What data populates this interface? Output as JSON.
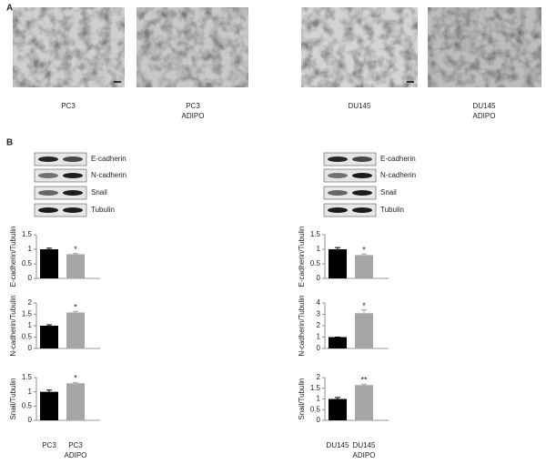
{
  "panel_labels": [
    "A",
    "B"
  ],
  "images": [
    {
      "caption": "PC3"
    },
    {
      "caption": "PC3\nADIPO"
    },
    {
      "caption": "DU145"
    },
    {
      "caption": "DU145\nADIPO"
    }
  ],
  "blots": [
    {
      "proteins": [
        "E-cadherin",
        "N-cadherin",
        "Snail",
        "Tubulin"
      ]
    },
    {
      "proteins": [
        "E-cadherin",
        "N-cadherin",
        "Snail",
        "Tubulin"
      ]
    }
  ],
  "chart_data": [
    {
      "type": "bar",
      "y_label": "E-cadherin/Tubulin",
      "values": [
        1.0,
        0.83
      ],
      "errors": [
        0.04,
        0.02
      ],
      "colors": [
        "#000000",
        "#a6a6a6"
      ],
      "value_annotations": [
        null,
        "*"
      ],
      "ylim": [
        0,
        1.5
      ],
      "yticks": [
        0,
        0.5,
        1,
        1.5
      ]
    },
    {
      "type": "bar",
      "y_label": "N-cadherin/Tubulin",
      "values": [
        1.0,
        1.58
      ],
      "errors": [
        0.04,
        0.05
      ],
      "colors": [
        "#000000",
        "#a6a6a6"
      ],
      "value_annotations": [
        null,
        "*"
      ],
      "ylim": [
        0,
        2
      ],
      "yticks": [
        0,
        0.5,
        1,
        1.5,
        2
      ]
    },
    {
      "type": "bar",
      "y_label": "Snail/Tubulin",
      "categories": [
        "PC3",
        "PC3\nADIPO"
      ],
      "values": [
        1.0,
        1.3
      ],
      "errors": [
        0.06,
        0.03
      ],
      "colors": [
        "#000000",
        "#a6a6a6"
      ],
      "value_annotations": [
        null,
        "*"
      ],
      "ylim": [
        0,
        1.5
      ],
      "yticks": [
        0,
        0.5,
        1,
        1.5
      ]
    },
    {
      "type": "bar",
      "y_label": "E-cadherin/Tubulin",
      "values": [
        1.0,
        0.8
      ],
      "errors": [
        0.06,
        0.04
      ],
      "colors": [
        "#000000",
        "#a6a6a6"
      ],
      "value_annotations": [
        null,
        "*"
      ],
      "ylim": [
        0,
        1.5
      ],
      "yticks": [
        0,
        0.5,
        1,
        1.5
      ]
    },
    {
      "type": "bar",
      "y_label": "N-cadherin/Tubulin",
      "values": [
        1.0,
        3.1
      ],
      "errors": [
        0.0,
        0.3
      ],
      "colors": [
        "#000000",
        "#a6a6a6"
      ],
      "value_annotations": [
        null,
        "*"
      ],
      "ylim": [
        0,
        4
      ],
      "yticks": [
        0,
        1,
        2,
        3,
        4
      ]
    },
    {
      "type": "bar",
      "y_label": "Snail/Tubulin",
      "categories": [
        "DU145",
        "DU145\nADIPO"
      ],
      "values": [
        1.0,
        1.65
      ],
      "errors": [
        0.07,
        0.04
      ],
      "colors": [
        "#000000",
        "#a6a6a6"
      ],
      "value_annotations": [
        null,
        "**"
      ],
      "ylim": [
        0,
        2
      ],
      "yticks": [
        0,
        0.5,
        1,
        1.5,
        2
      ]
    }
  ]
}
